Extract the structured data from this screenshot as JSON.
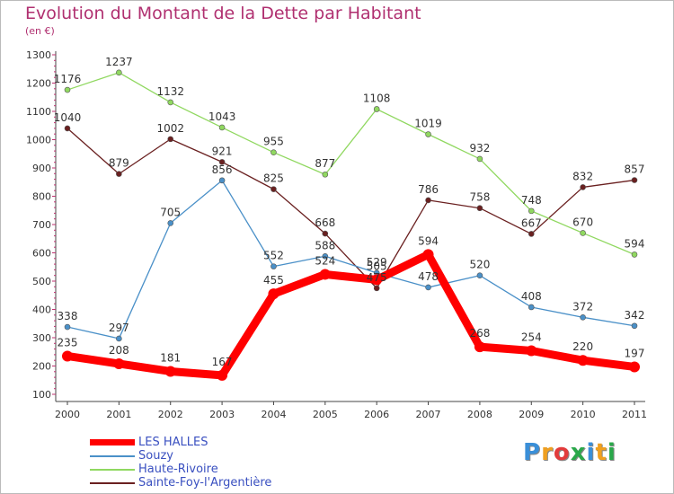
{
  "header": {
    "title": "Evolution du Montant de la Dette par Habitant",
    "subtitle": "(en €)"
  },
  "logo": {
    "text": "Proxiti",
    "letters": [
      {
        "ch": "P",
        "color": "#3a8fd8"
      },
      {
        "ch": "r",
        "color": "#f0a020"
      },
      {
        "ch": "o",
        "color": "#e23b3b"
      },
      {
        "ch": "x",
        "color": "#2aa84a"
      },
      {
        "ch": "i",
        "color": "#3a8fd8"
      },
      {
        "ch": "t",
        "color": "#f0a020"
      },
      {
        "ch": "i",
        "color": "#2aa84a"
      }
    ]
  },
  "chart_data": {
    "type": "line",
    "title": "Evolution du Montant de la Dette par Habitant",
    "subtitle": "(en €)",
    "xlabel": "",
    "ylabel": "",
    "x": [
      "2000",
      "2001",
      "2002",
      "2003",
      "2004",
      "2005",
      "2006",
      "2007",
      "2008",
      "2009",
      "2010",
      "2011"
    ],
    "yticks": [
      100,
      200,
      300,
      400,
      500,
      600,
      700,
      800,
      900,
      1000,
      1100,
      1200,
      1300
    ],
    "ylim": [
      100,
      1300
    ],
    "grid": false,
    "legend_position": "bottom-left",
    "series": [
      {
        "name": "LES HALLES",
        "color": "#ff0000",
        "values": [
          235,
          208,
          181,
          167,
          455,
          524,
          505,
          594,
          268,
          254,
          220,
          197
        ]
      },
      {
        "name": "Souzy",
        "color": "#4a90c8",
        "values": [
          338,
          297,
          705,
          856,
          552,
          588,
          529,
          478,
          520,
          408,
          372,
          342
        ]
      },
      {
        "name": "Haute-Rivoire",
        "color": "#90d860",
        "values": [
          1176,
          1237,
          1132,
          1043,
          955,
          877,
          1108,
          1019,
          932,
          748,
          670,
          594
        ]
      },
      {
        "name": "Sainte-Foy-l'Argentière",
        "color": "#6a2020",
        "values": [
          1040,
          879,
          1002,
          921,
          825,
          668,
          475,
          786,
          758,
          667,
          832,
          857
        ]
      }
    ]
  }
}
